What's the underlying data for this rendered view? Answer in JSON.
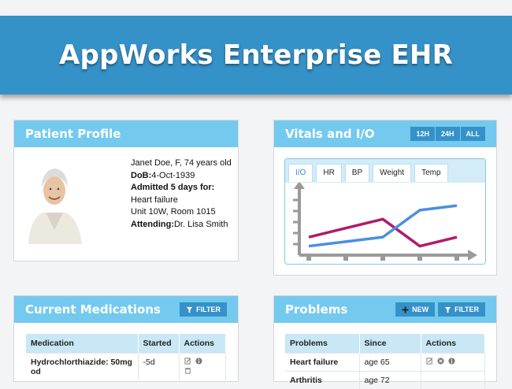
{
  "app": {
    "title": "AppWorks Enterprise EHR"
  },
  "profile": {
    "title": "Patient Profile",
    "line1": "Janet Doe, F, 74 years old",
    "dob_label": "DoB:",
    "dob_value": "4-Oct-1939",
    "admitted": "Admitted 5 days for:",
    "condition": "Heart failure",
    "location": "Unit 10W, Room 1015",
    "attending_label": "Attending:",
    "attending_value": "Dr. Lisa Smith"
  },
  "vitals": {
    "title": "Vitals and I/O",
    "ranges": [
      "12H",
      "24H",
      "ALL"
    ],
    "tabs": [
      "I/O",
      "HR",
      "BP",
      "Weight",
      "Temp"
    ],
    "active_tab": "I/O",
    "colors": {
      "series_a": "#b01a6f",
      "series_b": "#4a8fe0",
      "axis": "#9a9a9a"
    },
    "chart_data": {
      "type": "line",
      "x": [
        1,
        2,
        3,
        4,
        5
      ],
      "series": [
        {
          "values": [
            2,
            3,
            4,
            1,
            2
          ]
        },
        {
          "values": [
            1,
            1.5,
            2,
            5,
            5.5
          ]
        }
      ],
      "ylim": [
        0,
        7
      ]
    }
  },
  "medications": {
    "title": "Current Medications",
    "filter_label": "FILTER",
    "columns": [
      "Medication",
      "Started",
      "Actions"
    ],
    "rows": [
      {
        "name": "Hydrochlorthiazide: 50mg od",
        "started": "-5d"
      }
    ]
  },
  "problems": {
    "title": "Problems",
    "new_label": "NEW",
    "filter_label": "FILTER",
    "columns": [
      "Problems",
      "Since",
      "Actions"
    ],
    "rows": [
      {
        "name": "Heart failure",
        "since": "age 65"
      },
      {
        "name": "Arthritis",
        "since": "age 72"
      }
    ]
  }
}
